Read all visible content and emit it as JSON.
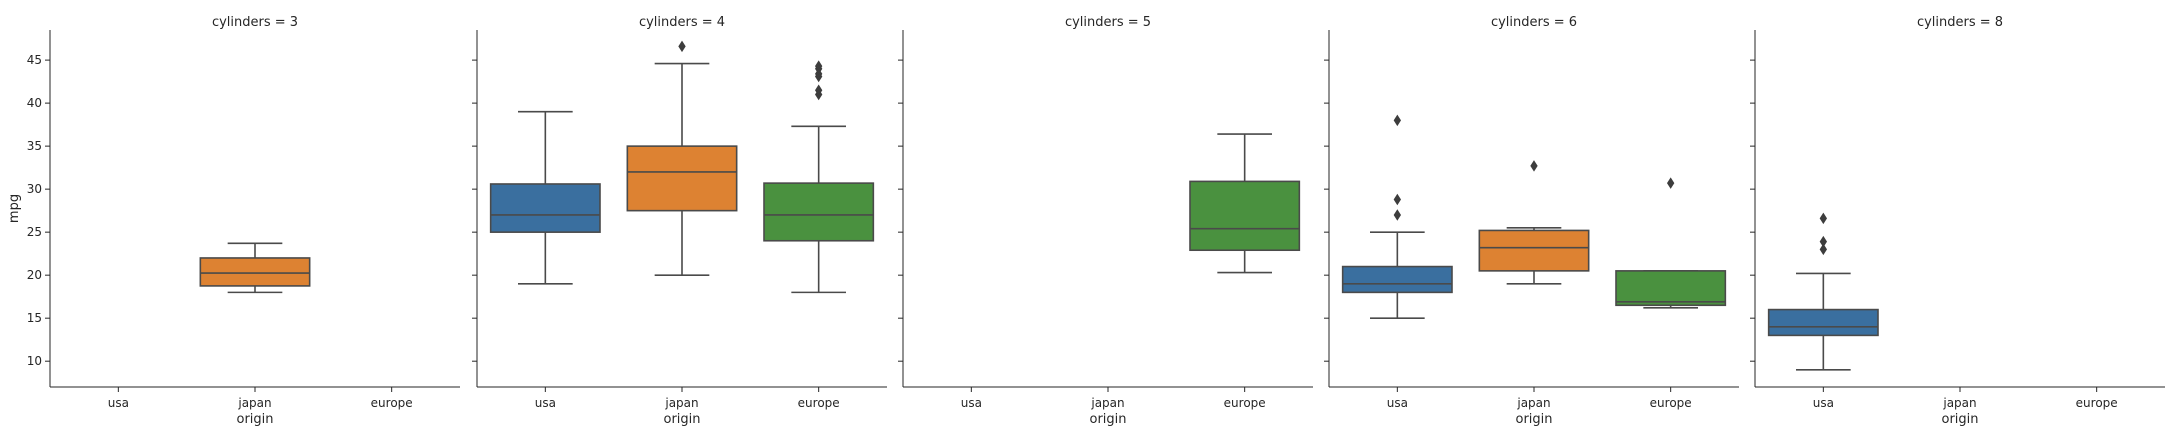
{
  "chart_data": {
    "type": "box",
    "ylabel": "mpg",
    "xlabel": "origin",
    "categories": [
      "usa",
      "japan",
      "europe"
    ],
    "yticks": [
      10,
      15,
      20,
      25,
      30,
      35,
      40,
      45
    ],
    "ylim": [
      7,
      48.5
    ],
    "colors": {
      "usa": "#3a6f9f",
      "japan": "#dd8232",
      "europe": "#4a913f"
    },
    "panels": [
      {
        "title": "cylinders = 3",
        "boxes": [
          {
            "category": "japan",
            "whisker_low": 18.0,
            "q1": 18.75,
            "median": 20.25,
            "q3": 22.0,
            "whisker_high": 23.7,
            "outliers": []
          }
        ]
      },
      {
        "title": "cylinders = 4",
        "boxes": [
          {
            "category": "usa",
            "whisker_low": 19.0,
            "q1": 25.0,
            "median": 27.0,
            "q3": 30.6,
            "whisker_high": 39.0,
            "outliers": []
          },
          {
            "category": "japan",
            "whisker_low": 20.0,
            "q1": 27.5,
            "median": 32.0,
            "q3": 35.0,
            "whisker_high": 44.6,
            "outliers": [
              46.6
            ]
          },
          {
            "category": "europe",
            "whisker_low": 18.0,
            "q1": 24.0,
            "median": 27.0,
            "q3": 30.7,
            "whisker_high": 37.3,
            "outliers": [
              41.0,
              41.5,
              43.1,
              43.4,
              44.0,
              44.3
            ]
          }
        ]
      },
      {
        "title": "cylinders = 5",
        "boxes": [
          {
            "category": "europe",
            "whisker_low": 20.3,
            "q1": 22.9,
            "median": 25.4,
            "q3": 30.9,
            "whisker_high": 36.4,
            "outliers": []
          }
        ]
      },
      {
        "title": "cylinders = 6",
        "boxes": [
          {
            "category": "usa",
            "whisker_low": 15.0,
            "q1": 18.0,
            "median": 19.0,
            "q3": 21.0,
            "whisker_high": 25.0,
            "outliers": [
              27.0,
              28.8,
              38.0
            ]
          },
          {
            "category": "japan",
            "whisker_low": 19.0,
            "q1": 20.5,
            "median": 23.2,
            "q3": 25.2,
            "whisker_high": 25.5,
            "outliers": [
              32.7
            ]
          },
          {
            "category": "europe",
            "whisker_low": 16.2,
            "q1": 16.5,
            "median": 16.9,
            "q3": 20.5,
            "whisker_high": 20.5,
            "outliers": [
              30.7
            ]
          }
        ]
      },
      {
        "title": "cylinders = 8",
        "boxes": [
          {
            "category": "usa",
            "whisker_low": 9.0,
            "q1": 13.0,
            "median": 14.0,
            "q3": 16.0,
            "whisker_high": 20.2,
            "outliers": [
              23.0,
              23.9,
              26.6
            ]
          }
        ]
      }
    ]
  }
}
